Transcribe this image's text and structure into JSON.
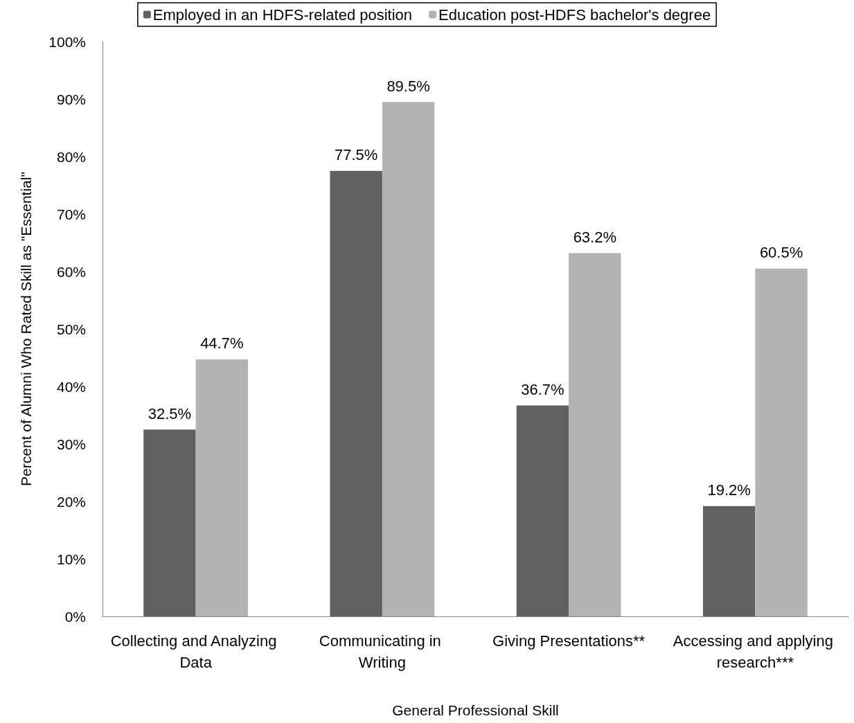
{
  "chart_data": {
    "type": "bar",
    "xlabel": "General Professional Skill",
    "ylabel": "Percent of Alumni Who Rated Skill as \"Essential\"",
    "categories": [
      "Collecting and Analyzing Data",
      "Communicating in Writing",
      "Giving Presentations**",
      "Accessing and applying research***"
    ],
    "series": [
      {
        "name": "Employed in an HDFS-related position",
        "color": "#606060",
        "values": [
          32.5,
          77.5,
          36.7,
          19.2
        ],
        "value_labels": [
          "32.5%",
          "77.5%",
          "36.7%",
          "19.2%"
        ]
      },
      {
        "name": "Education post-HDFS bachelor's degree",
        "color": "#b3b3b3",
        "values": [
          44.7,
          89.5,
          63.2,
          60.5
        ],
        "value_labels": [
          "44.7%",
          "89.5%",
          "63.2%",
          "60.5%"
        ]
      }
    ],
    "ylim": [
      0,
      100
    ],
    "yticks": [
      {
        "value": 0,
        "label": "0%"
      },
      {
        "value": 10,
        "label": "10%"
      },
      {
        "value": 20,
        "label": "20%"
      },
      {
        "value": 30,
        "label": "30%"
      },
      {
        "value": 40,
        "label": "40%"
      },
      {
        "value": 50,
        "label": "50%"
      },
      {
        "value": 60,
        "label": "60%"
      },
      {
        "value": 70,
        "label": "70%"
      },
      {
        "value": 80,
        "label": "80%"
      },
      {
        "value": 90,
        "label": "90%"
      },
      {
        "value": 100,
        "label": "100%"
      }
    ],
    "grid": false,
    "legend": "top"
  }
}
